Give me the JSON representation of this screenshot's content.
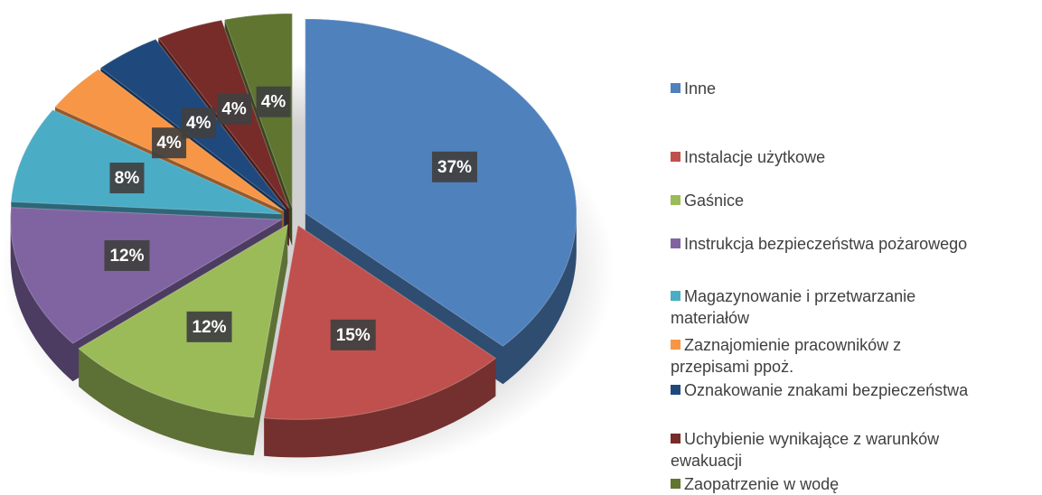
{
  "chart_data": {
    "type": "pie",
    "categories": [
      "Inne",
      "Instalacje użytkowe",
      "Gaśnice",
      "Instrukcja bezpieczeństwa pożarowego",
      "Magazynowanie i przetwarzanie materiałów",
      "Zaznajomienie pracowników z przepisami ppoż.",
      "Oznakowanie znakami bezpieczeństwa",
      "Uchybienie wynikające z warunków ewakuacji",
      "Zaopatrzenie w wodę"
    ],
    "values": [
      37,
      15,
      12,
      12,
      8,
      4,
      4,
      4,
      4
    ],
    "value_labels": [
      "37%",
      "15%",
      "12%",
      "12%",
      "8%",
      "4%",
      "4%",
      "4%",
      "4%"
    ],
    "colors": [
      "#4f81bd",
      "#c0504d",
      "#9bbb59",
      "#8064a2",
      "#4bacc6",
      "#f79646",
      "#1f497d",
      "#772c2a",
      "#5f7530"
    ],
    "legend": "right"
  }
}
